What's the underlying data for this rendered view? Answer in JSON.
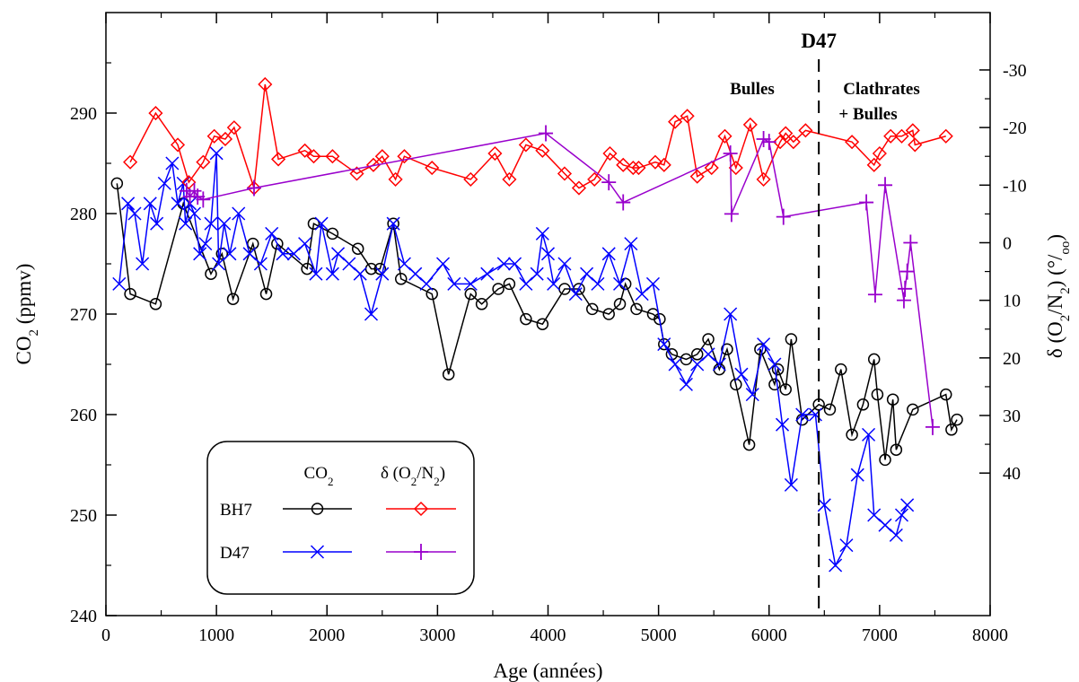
{
  "chart_data": {
    "type": "line",
    "xlabel": "Age (années)",
    "ylabel": "CO2  (ppmv)",
    "y2label": "δ (O2/N2) (°/oo)",
    "xlim": [
      0,
      8000
    ],
    "ylim": [
      240,
      300
    ],
    "y2lim": [
      40,
      -30
    ],
    "y2_inverted": true,
    "grid": false,
    "x_ticks": [
      "0",
      "1000",
      "2000",
      "3000",
      "4000",
      "5000",
      "6000",
      "7000",
      "8000"
    ],
    "y_ticks": [
      "240",
      "250",
      "260",
      "270",
      "280",
      "290"
    ],
    "y2_ticks": [
      "-30",
      "-20",
      "-10",
      "0",
      "10",
      "20",
      "30",
      "40"
    ],
    "annotations": {
      "vline_label": "D47",
      "vline_x": 6450,
      "left_region": "Bulles",
      "right_region_line1": "Clathrates",
      "right_region_line2": "+ Bulles"
    },
    "legend": {
      "placement": "bottom-left",
      "col1_header": "CO2",
      "col2_header": "δ (O2/N2)",
      "row1": "BH7",
      "row2": "D47"
    },
    "series": [
      {
        "name": "BH7 CO2",
        "axis": "left",
        "color": "#000000",
        "marker": "circle",
        "x": [
          100,
          220,
          450,
          700,
          950,
          1050,
          1150,
          1330,
          1450,
          1550,
          1820,
          1880,
          2050,
          2280,
          2400,
          2480,
          2600,
          2670,
          2950,
          3100,
          3300,
          3400,
          3550,
          3650,
          3800,
          3950,
          4150,
          4280,
          4400,
          4550,
          4650,
          4700,
          4800,
          4950,
          5010,
          5050,
          5120,
          5250,
          5350,
          5450,
          5550,
          5620,
          5700,
          5820,
          5920,
          6050,
          6080,
          6150,
          6200,
          6300,
          6450,
          6550,
          6650,
          6750,
          6850,
          6950,
          6980,
          7050,
          7120,
          7150,
          7300,
          7600,
          7650,
          7700
        ],
        "y": [
          283,
          272,
          271,
          281,
          274,
          276,
          271.5,
          277,
          272,
          277,
          274.5,
          279,
          278,
          276.5,
          274.5,
          274.5,
          279,
          273.5,
          272,
          264,
          272,
          271,
          272.5,
          273,
          269.5,
          269,
          272.5,
          272.5,
          270.5,
          270,
          271,
          273,
          270.5,
          270,
          269.5,
          267,
          266,
          265.5,
          266,
          267.5,
          264.5,
          266.5,
          263,
          257,
          266.5,
          263,
          264.5,
          262.5,
          267.5,
          259.5,
          261,
          260.5,
          264.5,
          258,
          261,
          265.5,
          262,
          255.5,
          261.5,
          256.5,
          260.5,
          262,
          258.5,
          259.5
        ]
      },
      {
        "name": "D47 CO2",
        "axis": "left",
        "color": "#0000ff",
        "marker": "x",
        "x": [
          120,
          200,
          260,
          330,
          400,
          460,
          530,
          600,
          650,
          700,
          720,
          760,
          800,
          850,
          900,
          950,
          1000,
          1020,
          1070,
          1120,
          1200,
          1300,
          1400,
          1500,
          1600,
          1700,
          1800,
          1900,
          1950,
          2050,
          2100,
          2200,
          2300,
          2400,
          2500,
          2600,
          2700,
          2800,
          2900,
          3050,
          3150,
          3300,
          3450,
          3600,
          3700,
          3800,
          3900,
          3950,
          4000,
          4050,
          4150,
          4250,
          4350,
          4450,
          4550,
          4650,
          4750,
          4850,
          4950,
          5050,
          5150,
          5250,
          5350,
          5450,
          5550,
          5650,
          5750,
          5850,
          5950,
          6050,
          6120,
          6200,
          6300,
          6420,
          6500,
          6600,
          6700,
          6800,
          6900,
          6950,
          7050,
          7150,
          7200,
          7250
        ],
        "y": [
          273,
          281,
          280,
          275,
          281,
          279,
          283,
          285,
          281,
          283,
          279,
          281,
          280,
          276,
          277,
          279,
          286,
          275,
          279,
          276,
          280,
          276,
          275,
          278,
          276,
          276,
          277,
          274,
          279,
          274,
          276,
          275,
          274,
          270,
          274,
          279,
          275,
          274,
          273,
          275,
          273,
          273,
          274,
          275,
          275,
          273,
          274,
          278,
          276,
          273,
          275,
          272,
          274,
          273,
          276,
          273,
          277,
          272,
          273,
          267,
          265,
          263,
          265,
          266,
          265,
          270,
          264,
          262,
          267,
          265,
          259,
          253,
          260,
          260,
          251,
          245,
          247,
          254,
          258,
          250,
          249,
          248,
          250,
          251
        ]
      },
      {
        "name": "BH7 δ (O2/N2)",
        "axis": "right",
        "color": "#ff0000",
        "marker": "diamond",
        "x": [
          220,
          450,
          650,
          750,
          880,
          980,
          1080,
          1160,
          1340,
          1440,
          1560,
          1800,
          1880,
          2050,
          2270,
          2420,
          2500,
          2620,
          2700,
          2950,
          3300,
          3520,
          3650,
          3800,
          3950,
          4150,
          4280,
          4420,
          4560,
          4680,
          4770,
          4820,
          4970,
          5050,
          5150,
          5260,
          5350,
          5480,
          5600,
          5700,
          5830,
          5950,
          6100,
          6150,
          6220,
          6330,
          6750,
          6950,
          7000,
          7100,
          7200,
          7300,
          7320,
          7600
        ],
        "y": [
          -14,
          -22.5,
          -17,
          -10.5,
          -14,
          -18.5,
          -18,
          -20,
          -9.5,
          -27.5,
          -14.5,
          -16,
          -15,
          -15,
          -12,
          -13.5,
          -15,
          -11,
          -15,
          -13,
          -11,
          -15.5,
          -11,
          -17,
          -16,
          -12,
          -9.5,
          -11,
          -15.5,
          -13.5,
          -13,
          -13,
          -14,
          -13.5,
          -21,
          -22,
          -11.5,
          -13,
          -18.5,
          -13,
          -20.5,
          -11,
          -17.5,
          -19,
          -17.5,
          -19.5,
          -17.5,
          -13.5,
          -15.5,
          -18.5,
          -18.5,
          -19.5,
          -17,
          -18.5
        ]
      },
      {
        "name": "D47 δ (O2/N2)",
        "axis": "right",
        "color": "#9900cc",
        "marker": "plus",
        "x": [
          730,
          760,
          800,
          830,
          880,
          1340,
          3980,
          4550,
          4680,
          5650,
          5660,
          5950,
          6000,
          6130,
          6880,
          6960,
          7050,
          7220,
          7230,
          7250,
          7280,
          7480
        ],
        "y": [
          -9,
          -8,
          -9,
          -8,
          -7.5,
          -9.5,
          -19,
          -10.5,
          -7,
          -15.5,
          -5,
          -18,
          -17.5,
          -4.5,
          -7,
          9,
          -10,
          10,
          8,
          5,
          0,
          32
        ]
      }
    ]
  }
}
